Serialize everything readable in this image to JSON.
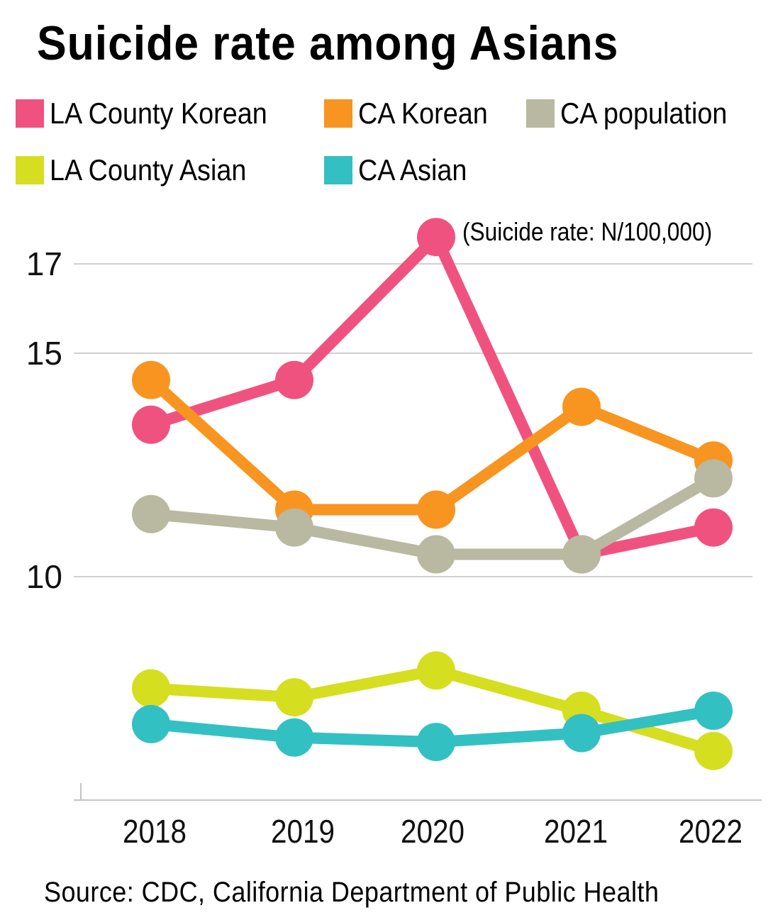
{
  "chart_data": {
    "type": "line",
    "title": "Suicide rate among Asians",
    "unit_note": "(Suicide rate: N/100,000)",
    "source": "Source: CDC, California Department of Public Health",
    "xlabel": "",
    "ylabel": "",
    "x": [
      "2018",
      "2019",
      "2020",
      "2021",
      "2022"
    ],
    "yticks": [
      10,
      15,
      17
    ],
    "ytick_labels": [
      "10",
      "15",
      "17"
    ],
    "ylim": [
      5,
      18
    ],
    "grid": true,
    "legend_position": "top",
    "series": [
      {
        "name": "LA County Korean",
        "color": "#F05280",
        "values": [
          13.4,
          14.4,
          17.6,
          10.5,
          11.1
        ]
      },
      {
        "name": "CA Korean",
        "color": "#F79520",
        "values": [
          14.4,
          11.5,
          11.5,
          13.8,
          12.6
        ]
      },
      {
        "name": "CA population",
        "color": "#B9B8A1",
        "values": [
          11.4,
          11.1,
          10.5,
          10.5,
          12.2
        ]
      },
      {
        "name": "LA County Asian",
        "color": "#D6DE20",
        "values": [
          7.5,
          7.3,
          7.9,
          7.0,
          6.1
        ]
      },
      {
        "name": "CA Asian",
        "color": "#33C0C3",
        "values": [
          6.7,
          6.4,
          6.3,
          6.5,
          7.0
        ]
      }
    ]
  }
}
